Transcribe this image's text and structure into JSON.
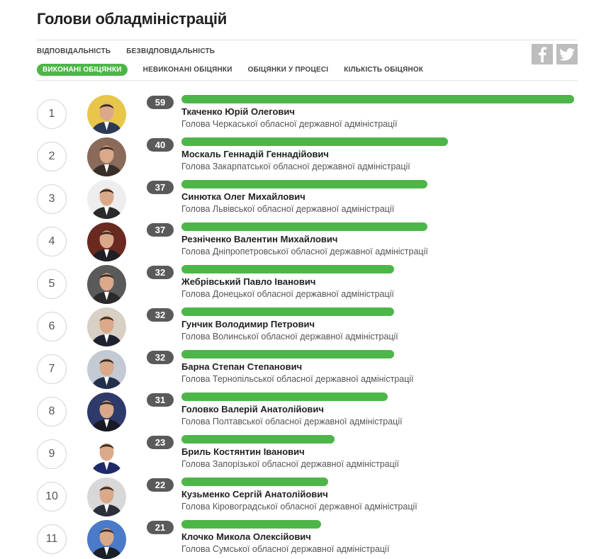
{
  "page": {
    "title": "Голови обладміністрацій"
  },
  "nav_primary": [
    {
      "label": "ВІДПОВІДАЛЬНІСТЬ"
    },
    {
      "label": "БЕЗВІДПОВІДАЛЬНІСТЬ"
    }
  ],
  "nav_secondary": [
    {
      "label": "ВИКОНАНІ ОБІЦЯНКИ",
      "active": true
    },
    {
      "label": "НЕВИКОНАНІ ОБІЦЯНКИ",
      "active": false
    },
    {
      "label": "ОБІЦЯНКИ У ПРОЦЕСІ",
      "active": false
    },
    {
      "label": "КІЛЬКІСТЬ ОБІЦЯНОК",
      "active": false
    }
  ],
  "social": {
    "facebook_icon": "facebook-icon",
    "twitter_icon": "twitter-icon"
  },
  "colors": {
    "accent": "#4cb648",
    "badge": "#5a5a5a",
    "social": "#bdbdbd"
  },
  "max_value": 59,
  "governors": [
    {
      "rank": "1",
      "count": 59,
      "name": "Ткаченко Юрій Олегович",
      "position": "Голова Черкаської обласної державної адміністрації",
      "bg": "#e8c64a",
      "suit": "#2b3a55"
    },
    {
      "rank": "2",
      "count": 40,
      "name": "Москаль Геннадій Геннадійович",
      "position": "Голова Закарпатської обласної державної адміністрації",
      "bg": "#8a6a5a",
      "suit": "#3a2e2a"
    },
    {
      "rank": "3",
      "count": 37,
      "name": "Синютка Олег Михайлович",
      "position": "Голова Львівської обласної державної адміністрації",
      "bg": "#eeeeee",
      "suit": "#2a2a2a"
    },
    {
      "rank": "4",
      "count": 37,
      "name": "Резніченко Валентин Михайлович",
      "position": "Голова Дніпропетровської обласної державної адміністрації",
      "bg": "#6a2a20",
      "suit": "#1f1f26"
    },
    {
      "rank": "5",
      "count": 32,
      "name": "Жебрівський Павло Іванович",
      "position": "Голова Донецької обласної державної адміністрації",
      "bg": "#5a5a5a",
      "suit": "#2a2a2a"
    },
    {
      "rank": "6",
      "count": 32,
      "name": "Гунчик Володимир Петрович",
      "position": "Голова Волинської обласної державної адміністрації",
      "bg": "#d8d0c4",
      "suit": "#1e2230"
    },
    {
      "rank": "7",
      "count": 32,
      "name": "Барна Степан Степанович",
      "position": "Голова Тернопільської обласної державної адміністрації",
      "bg": "#c4cad4",
      "suit": "#22304a"
    },
    {
      "rank": "8",
      "count": 31,
      "name": "Головко Валерій Анатолійович",
      "position": "Голова Полтавської обласної державної адміністрації",
      "bg": "#2e3a6a",
      "suit": "#1a1a24"
    },
    {
      "rank": "9",
      "count": 23,
      "name": "Бриль Костянтин Іванович",
      "position": "Голова Запорізької обласної державної адміністрації",
      "bg": "#ffffff",
      "suit": "#1e2a6a"
    },
    {
      "rank": "10",
      "count": 22,
      "name": "Кузьменко Сергій Анатолійович",
      "position": "Голова Кіровоградської обласної державної адміністрації",
      "bg": "#d8d8d8",
      "suit": "#2a2f3a"
    },
    {
      "rank": "11",
      "count": 21,
      "name": "Клочко Микола Олексійович",
      "position": "Голова Сумської обласної державної адміністрації",
      "bg": "#4a7ac8",
      "suit": "#1a1f2a"
    }
  ]
}
